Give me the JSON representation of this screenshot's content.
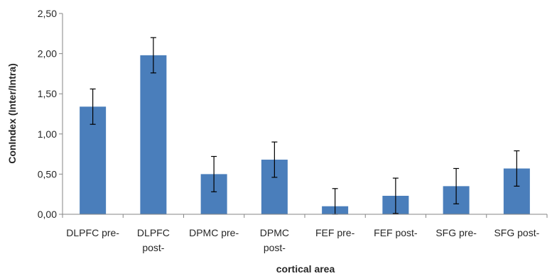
{
  "chart_data": {
    "type": "bar",
    "title": "",
    "xlabel": "cortical area",
    "ylabel": "ConIndex (Inter/Intra)",
    "ylim": [
      0,
      2.5
    ],
    "yticks": [
      "0,00",
      "0,50",
      "1,00",
      "1,50",
      "2,00",
      "2,50"
    ],
    "grid": false,
    "legend": "none",
    "bar_color": "#4a7ebb",
    "categories": [
      [
        "DLPFC pre-"
      ],
      [
        "DLPFC",
        "post-"
      ],
      [
        "DPMC pre-"
      ],
      [
        "DPMC",
        "post-"
      ],
      [
        "FEF pre-"
      ],
      [
        "FEF post-"
      ],
      [
        "SFG pre-"
      ],
      [
        "SFG post-"
      ]
    ],
    "values": [
      1.34,
      1.98,
      0.5,
      0.68,
      0.1,
      0.23,
      0.35,
      0.57
    ],
    "error": [
      0.22,
      0.22,
      0.22,
      0.22,
      0.22,
      0.22,
      0.22,
      0.22
    ]
  }
}
